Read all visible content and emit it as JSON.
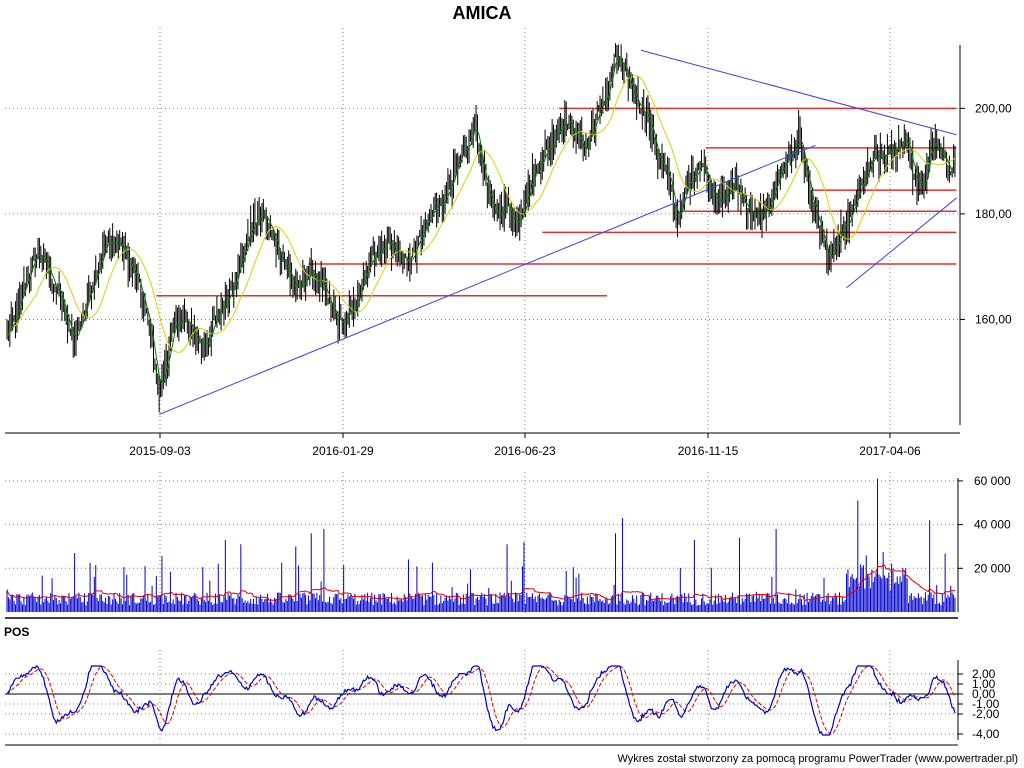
{
  "chart_data": {
    "title": "AMICA",
    "footer": "Wykres został stworzony za pomocą programu PowerTrader (www.powertrader.pl)",
    "colors": {
      "candles": "#000000",
      "ma_short": "#008000",
      "ma_long": "#d4d400",
      "trendlines": "#4040e0",
      "levels": "#e03030",
      "volume": "#0000cc",
      "volume_avg": "#e00000",
      "pos_main": "#0000cc",
      "pos_signal": "#e00000",
      "grid": "#808080"
    },
    "price": {
      "type": "line",
      "xlabels": [
        "2015-09-03",
        "2016-01-29",
        "2016-06-23",
        "2016-11-15",
        "2017-04-06"
      ],
      "ylim": [
        140,
        212
      ],
      "yticks": [
        {
          "value": 200,
          "label": "200,00"
        },
        {
          "value": 180,
          "label": "180,00"
        },
        {
          "value": 160,
          "label": "160,00"
        }
      ],
      "grid": true,
      "anchors": [
        [
          0,
          157
        ],
        [
          6,
          160
        ],
        [
          14,
          168
        ],
        [
          22,
          173
        ],
        [
          30,
          169
        ],
        [
          38,
          164
        ],
        [
          46,
          156
        ],
        [
          52,
          159
        ],
        [
          60,
          167
        ],
        [
          70,
          174
        ],
        [
          78,
          175
        ],
        [
          86,
          171
        ],
        [
          94,
          166
        ],
        [
          102,
          157
        ],
        [
          108,
          146
        ],
        [
          116,
          156
        ],
        [
          124,
          161
        ],
        [
          132,
          157
        ],
        [
          140,
          155
        ],
        [
          148,
          160
        ],
        [
          156,
          164
        ],
        [
          166,
          171
        ],
        [
          174,
          178
        ],
        [
          182,
          180
        ],
        [
          190,
          175
        ],
        [
          198,
          170
        ],
        [
          206,
          165
        ],
        [
          214,
          169
        ],
        [
          222,
          167
        ],
        [
          230,
          162
        ],
        [
          238,
          159
        ],
        [
          246,
          162
        ],
        [
          254,
          168
        ],
        [
          262,
          173
        ],
        [
          270,
          175
        ],
        [
          278,
          172
        ],
        [
          286,
          171
        ],
        [
          294,
          176
        ],
        [
          302,
          180
        ],
        [
          310,
          183
        ],
        [
          318,
          188
        ],
        [
          326,
          192
        ],
        [
          332,
          197
        ],
        [
          338,
          188
        ],
        [
          346,
          179
        ],
        [
          354,
          182
        ],
        [
          362,
          178
        ],
        [
          370,
          185
        ],
        [
          378,
          190
        ],
        [
          386,
          193
        ],
        [
          394,
          198
        ],
        [
          402,
          196
        ],
        [
          410,
          192
        ],
        [
          418,
          198
        ],
        [
          426,
          203
        ],
        [
          432,
          210
        ],
        [
          438,
          207
        ],
        [
          446,
          202
        ],
        [
          454,
          199
        ],
        [
          462,
          191
        ],
        [
          470,
          186
        ],
        [
          476,
          179
        ],
        [
          484,
          186
        ],
        [
          492,
          190
        ],
        [
          500,
          185
        ],
        [
          508,
          182
        ],
        [
          516,
          186
        ],
        [
          524,
          182
        ],
        [
          532,
          179
        ],
        [
          540,
          181
        ],
        [
          548,
          187
        ],
        [
          556,
          191
        ],
        [
          562,
          195
        ],
        [
          570,
          184
        ],
        [
          576,
          178
        ],
        [
          584,
          171
        ],
        [
          590,
          175
        ],
        [
          598,
          179
        ],
        [
          606,
          185
        ],
        [
          614,
          190
        ],
        [
          622,
          191
        ],
        [
          630,
          192
        ],
        [
          638,
          195
        ],
        [
          644,
          187
        ],
        [
          650,
          184
        ],
        [
          656,
          194
        ],
        [
          662,
          191
        ],
        [
          668,
          189
        ]
      ],
      "ma_lag": 8,
      "trendlines": [
        {
          "x1": 108,
          "y1": 142,
          "x2": 574,
          "y2": 193
        },
        {
          "x1": 450,
          "y1": 211,
          "x2": 674,
          "y2": 195
        },
        {
          "x1": 596,
          "y1": 166,
          "x2": 674,
          "y2": 183
        }
      ],
      "levels": [
        {
          "y": 164.5,
          "x1": 106,
          "x2": 426
        },
        {
          "y": 170.5,
          "x1": 214,
          "x2": 674
        },
        {
          "y": 176.5,
          "x1": 380,
          "x2": 674
        },
        {
          "y": 180.5,
          "x1": 478,
          "x2": 674
        },
        {
          "y": 184.5,
          "x1": 572,
          "x2": 674
        },
        {
          "y": 192.5,
          "x1": 496,
          "x2": 674
        },
        {
          "y": 200.0,
          "x1": 392,
          "x2": 674
        }
      ],
      "n_bars": 674
    },
    "volume": {
      "type": "bar",
      "ylim": [
        0,
        65000
      ],
      "yticks": [
        {
          "value": 60000,
          "label": "60 000"
        },
        {
          "value": 40000,
          "label": "40 000"
        },
        {
          "value": 20000,
          "label": "20 000"
        }
      ],
      "grid": true,
      "spikes": [
        {
          "i": 48,
          "v": 27000
        },
        {
          "i": 98,
          "v": 21000
        },
        {
          "i": 155,
          "v": 33000
        },
        {
          "i": 166,
          "v": 31000
        },
        {
          "i": 205,
          "v": 30000
        },
        {
          "i": 216,
          "v": 36000
        },
        {
          "i": 225,
          "v": 38000
        },
        {
          "i": 355,
          "v": 31000
        },
        {
          "i": 367,
          "v": 32000
        },
        {
          "i": 432,
          "v": 36000
        },
        {
          "i": 437,
          "v": 43000
        },
        {
          "i": 488,
          "v": 33000
        },
        {
          "i": 520,
          "v": 34000
        },
        {
          "i": 546,
          "v": 38000
        },
        {
          "i": 604,
          "v": 51000
        },
        {
          "i": 618,
          "v": 61000
        },
        {
          "i": 655,
          "v": 42000
        },
        {
          "i": 670,
          "v": 12000
        }
      ]
    },
    "pos": {
      "type": "line",
      "label": "POS",
      "ylim": [
        -4.6,
        3.2
      ],
      "yticks": [
        {
          "value": 2,
          "label": "2,00"
        },
        {
          "value": 1,
          "label": "1,00"
        },
        {
          "value": 0,
          "label": "0,00"
        },
        {
          "value": -1,
          "label": "-1,00"
        },
        {
          "value": -2,
          "label": "-2,00"
        },
        {
          "value": -4,
          "label": "-4,00"
        }
      ],
      "grid": true
    }
  }
}
